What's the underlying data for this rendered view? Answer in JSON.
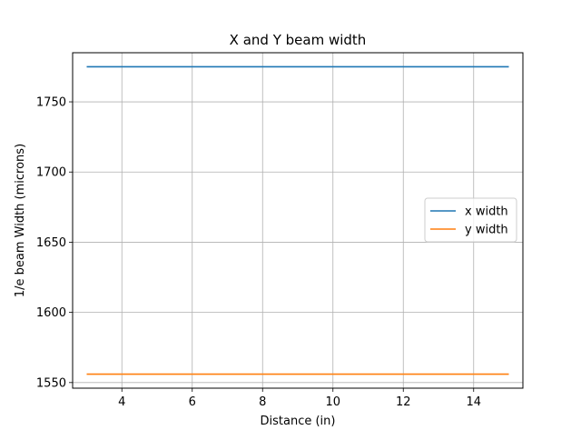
{
  "chart_data": {
    "type": "line",
    "title": "X and Y beam width",
    "xlabel": "Distance (in)",
    "ylabel": "1/e beam Width (microns)",
    "xlim": [
      2.6,
      15.4
    ],
    "ylim": [
      1546,
      1785
    ],
    "xticks": [
      4,
      6,
      8,
      10,
      12,
      14
    ],
    "yticks": [
      1550,
      1600,
      1650,
      1700,
      1750
    ],
    "grid": true,
    "legend_position": "center-right",
    "series": [
      {
        "name": "x width",
        "color": "#1f77b4",
        "x": [
          3,
          15
        ],
        "y": [
          1775,
          1775
        ]
      },
      {
        "name": "y width",
        "color": "#ff7f0e",
        "x": [
          3,
          15
        ],
        "y": [
          1556,
          1556
        ]
      }
    ]
  }
}
